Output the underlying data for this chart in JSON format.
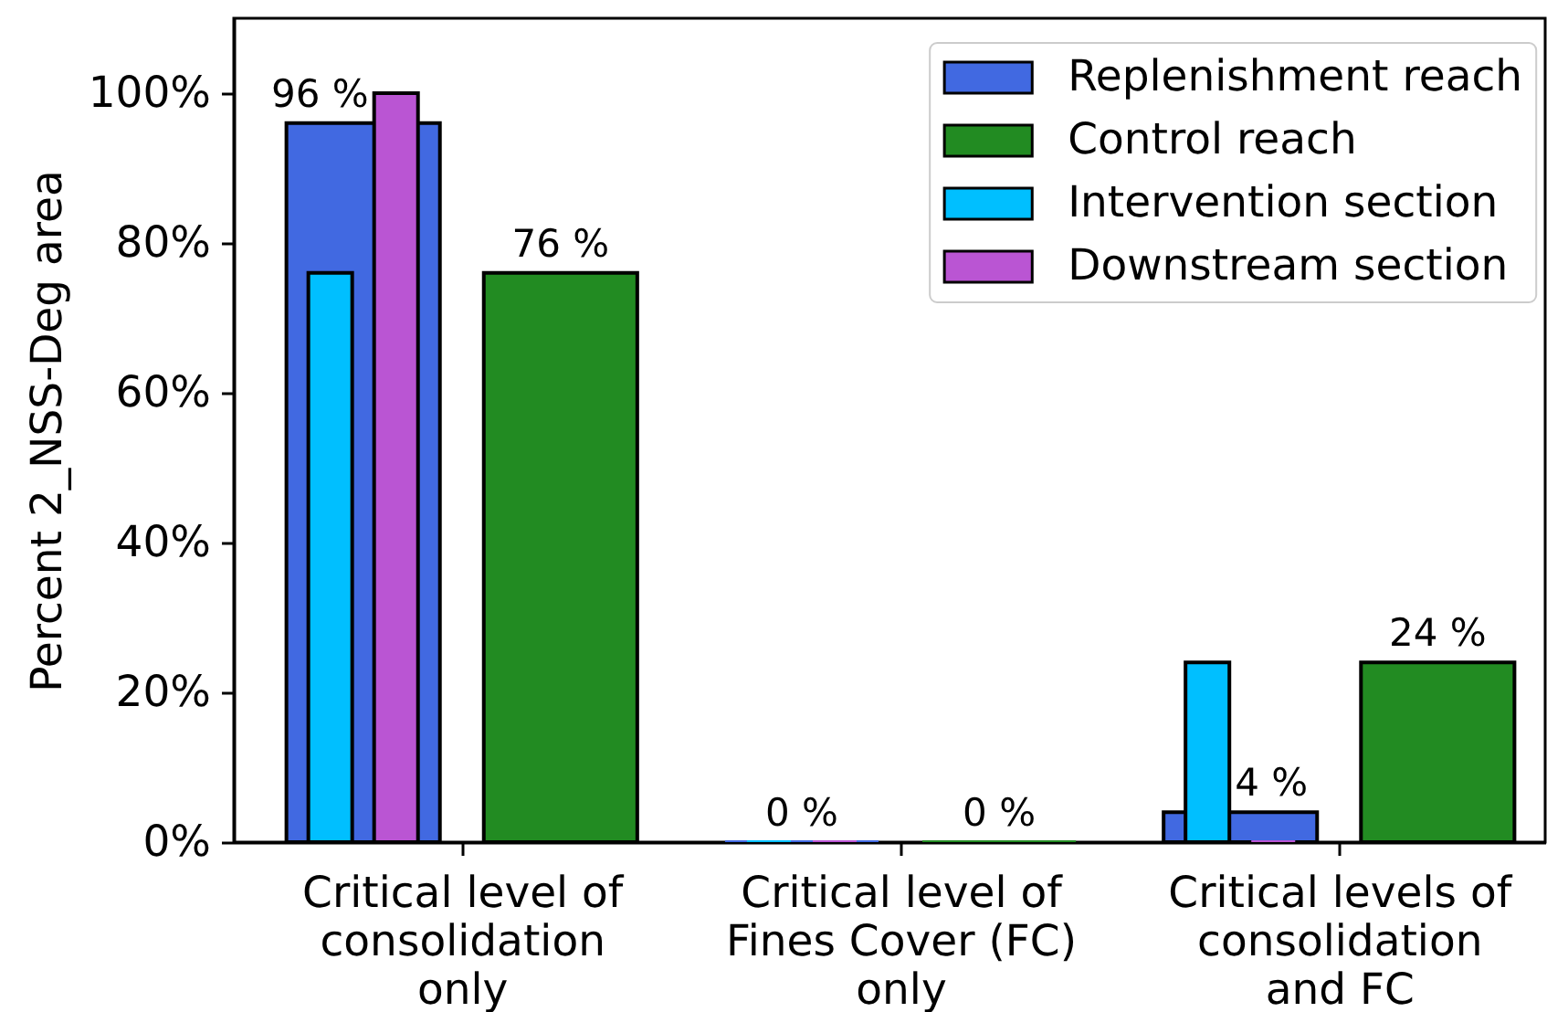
{
  "chart_data": {
    "type": "bar",
    "ylabel": "Percent 2_NSS-Deg area",
    "categories": [
      "Critical level of\nconsolidation\nonly",
      "Critical level of\nFines Cover (FC)\nonly",
      "Critical levels of\nconsolidation\nand FC"
    ],
    "series": [
      {
        "name": "Replenishment reach",
        "color": "#4169e1",
        "values": [
          96,
          0,
          4
        ],
        "value_labels": [
          "96 %",
          "0 %",
          "4 %"
        ]
      },
      {
        "name": "Control reach",
        "color": "#228b22",
        "values": [
          76,
          0,
          24
        ],
        "value_labels": [
          "76 %",
          "0 %",
          "24 %"
        ]
      },
      {
        "name": "Intervention section",
        "color": "#00bfff",
        "values": [
          76,
          0,
          24
        ]
      },
      {
        "name": "Downstream section",
        "color": "#ba55d3",
        "values": [
          100,
          0,
          0
        ]
      }
    ],
    "ylim": [
      0,
      110
    ],
    "yticks": [
      {
        "value": 0,
        "label": "0%"
      },
      {
        "value": 20,
        "label": "20%"
      },
      {
        "value": 40,
        "label": "40%"
      },
      {
        "value": 60,
        "label": "60%"
      },
      {
        "value": 80,
        "label": "80%"
      },
      {
        "value": 100,
        "label": "100%"
      }
    ],
    "legend": "top right"
  }
}
